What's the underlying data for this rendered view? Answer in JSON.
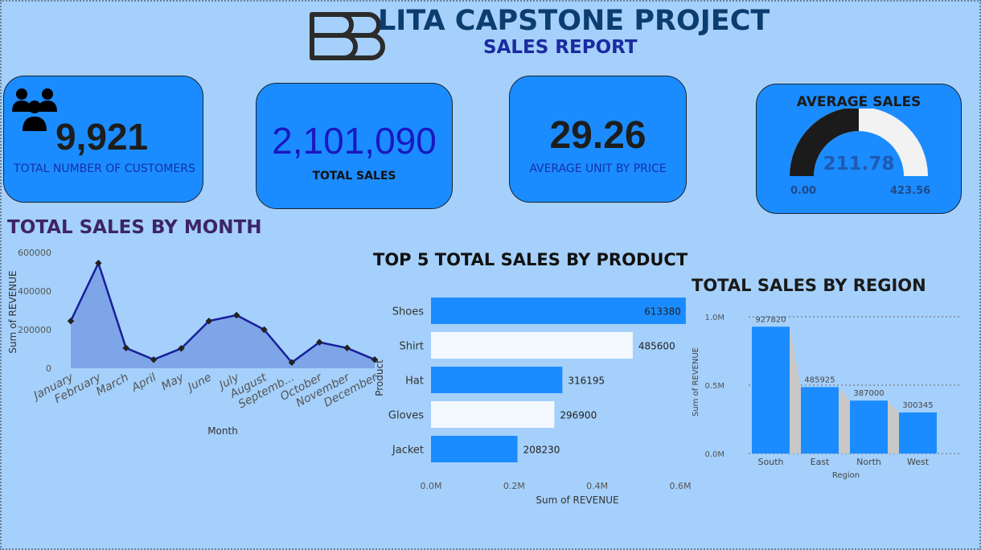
{
  "header": {
    "title": "LITA CAPSTONE PROJECT",
    "subtitle": "SALES REPORT",
    "logo_icon": "double-b-logo-icon"
  },
  "kpis": {
    "customers": {
      "value": "9,921",
      "label": "TOTAL NUMBER OF CUSTOMERS",
      "icon": "people-group-icon"
    },
    "total_sales": {
      "value": "2,101,090",
      "label": "TOTAL SALES"
    },
    "avg_unit_price": {
      "value": "29.26",
      "label": "AVERAGE UNIT BY PRICE"
    },
    "avg_sales": {
      "title": "AVERAGE SALES",
      "value": "211.78",
      "min": "0.00",
      "max": "423.56"
    }
  },
  "colors": {
    "background": "#a5d0fb",
    "card": "#1b8cff",
    "bar": "#1b8cff",
    "bar_highlight": "#f4f9ff",
    "line": "#17209a",
    "area": "#7ba2e6",
    "gauge_fill": "#1b1b1b",
    "gauge_rest": "#f2f2f2"
  },
  "chart_data": [
    {
      "id": "sales_by_month",
      "type": "area",
      "title": "TOTAL SALES BY MONTH",
      "xlabel": "Month",
      "ylabel": "Sum of REVENUE",
      "ylim": [
        0,
        600000
      ],
      "yticks": [
        "0",
        "200000",
        "400000",
        "600000"
      ],
      "categories": [
        "January",
        "February",
        "March",
        "April",
        "May",
        "June",
        "July",
        "August",
        "Septemb...",
        "October",
        "November",
        "December"
      ],
      "values": [
        245000,
        545000,
        105000,
        45000,
        103000,
        245000,
        275000,
        200000,
        30000,
        135000,
        105000,
        45000
      ]
    },
    {
      "id": "top5_by_product",
      "type": "bar",
      "orientation": "horizontal",
      "title": "TOP 5 TOTAL SALES BY PRODUCT",
      "xlabel": "Sum of REVENUE",
      "ylabel": "Product",
      "xlim": [
        0,
        600000
      ],
      "xticks": [
        "0.0M",
        "0.2M",
        "0.4M",
        "0.6M"
      ],
      "categories": [
        "Shoes",
        "Shirt",
        "Hat",
        "Gloves",
        "Jacket"
      ],
      "values": [
        613380,
        485600,
        316195,
        296900,
        208230
      ],
      "labels": [
        "613380",
        "485600",
        "316195",
        "296900",
        "208230"
      ]
    },
    {
      "id": "sales_by_region",
      "type": "bar",
      "title": "TOTAL SALES BY REGION",
      "xlabel": "Region",
      "ylabel": "Sum of REVENUE",
      "ylim": [
        0,
        1000000
      ],
      "yticks": [
        "0.0M",
        "0.5M",
        "1.0M"
      ],
      "categories": [
        "South",
        "East",
        "North",
        "West"
      ],
      "values": [
        927820,
        485925,
        387000,
        300345
      ],
      "labels": [
        "927820",
        "485925",
        "387000",
        "300345"
      ]
    }
  ]
}
